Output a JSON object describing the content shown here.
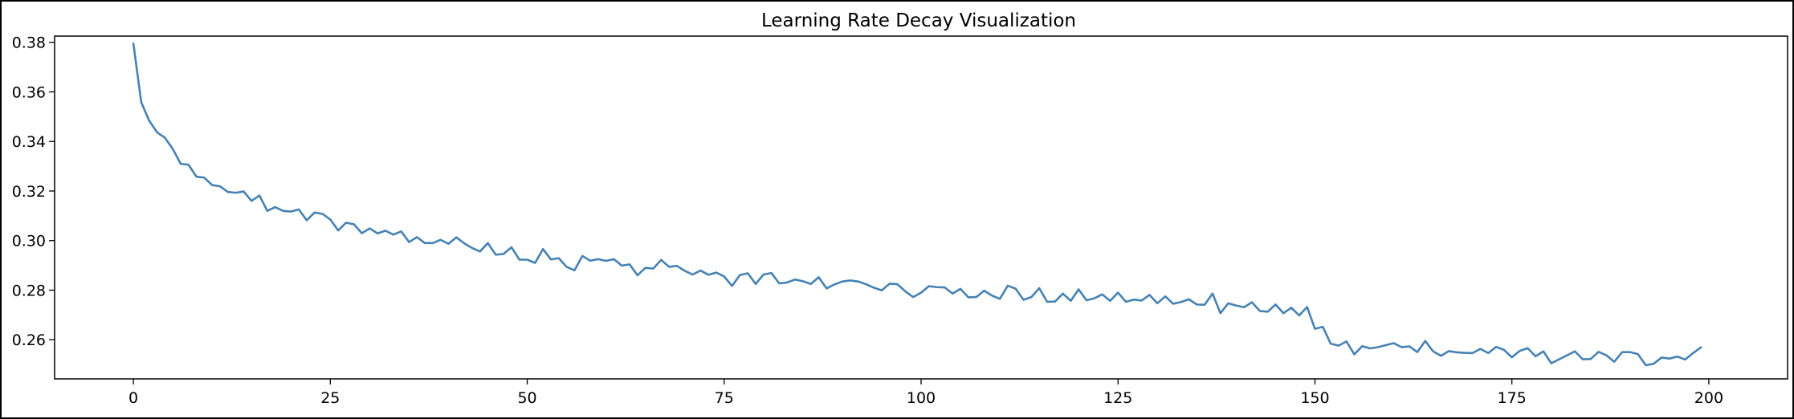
{
  "chart_data": {
    "type": "line",
    "title": "Learning Rate Decay Visualization",
    "xlabel": "",
    "ylabel": "",
    "xlim": [
      -10,
      210
    ],
    "ylim": [
      0.2442,
      0.3825
    ],
    "x_ticks": [
      0,
      25,
      50,
      75,
      100,
      125,
      150,
      175,
      200
    ],
    "y_ticks": [
      0.26,
      0.28,
      0.3,
      0.32,
      0.34,
      0.36,
      0.38
    ],
    "grid": false,
    "legend": "none",
    "line_color": "#4682b4",
    "series": [
      {
        "x": [
          0,
          1,
          2,
          3,
          4,
          5,
          6,
          7,
          8,
          9,
          10,
          11,
          12,
          13,
          14,
          15,
          16,
          17,
          18,
          19,
          20,
          21,
          22,
          23,
          24,
          25,
          26,
          27,
          28,
          29,
          30,
          31,
          32,
          33,
          34,
          35,
          36,
          37,
          38,
          39,
          40,
          41,
          42,
          43,
          44,
          45,
          46,
          47,
          48,
          49,
          50,
          51,
          52,
          53,
          54,
          55,
          56,
          57,
          58,
          59,
          60,
          61,
          62,
          63,
          64,
          65,
          66,
          67,
          68,
          69,
          70,
          71,
          72,
          73,
          74,
          75,
          76,
          77,
          78,
          79,
          80,
          81,
          82,
          83,
          84,
          85,
          86,
          87,
          88,
          89,
          90,
          91,
          92,
          93,
          94,
          95,
          96,
          97,
          98,
          99,
          100,
          101,
          102,
          103,
          104,
          105,
          106,
          107,
          108,
          109,
          110,
          111,
          112,
          113,
          114,
          115,
          116,
          117,
          118,
          119,
          120,
          121,
          122,
          123,
          124,
          125,
          126,
          127,
          128,
          129,
          130,
          131,
          132,
          133,
          134,
          135,
          136,
          137,
          138,
          139,
          140,
          141,
          142,
          143,
          144,
          145,
          146,
          147,
          148,
          149,
          150,
          151,
          152,
          153,
          154,
          155,
          156,
          157,
          158,
          159,
          160,
          161,
          162,
          163,
          164,
          165,
          166,
          167,
          168,
          169,
          170,
          171,
          172,
          173,
          174,
          175,
          176,
          177,
          178,
          179,
          180,
          181,
          182,
          183,
          184,
          185,
          186,
          187,
          188,
          189,
          190,
          191,
          192,
          193,
          194,
          195,
          196,
          197,
          198,
          199
        ],
        "values": [
          0.3795,
          0.3558,
          0.3484,
          0.3437,
          0.3415,
          0.337,
          0.331,
          0.3306,
          0.3258,
          0.3254,
          0.3224,
          0.3219,
          0.3196,
          0.3193,
          0.3198,
          0.316,
          0.3182,
          0.312,
          0.3135,
          0.312,
          0.3117,
          0.3126,
          0.3082,
          0.3113,
          0.3108,
          0.3085,
          0.3041,
          0.3072,
          0.3066,
          0.303,
          0.3049,
          0.3029,
          0.304,
          0.3024,
          0.3037,
          0.2994,
          0.3014,
          0.299,
          0.299,
          0.3003,
          0.2987,
          0.3013,
          0.2989,
          0.297,
          0.2956,
          0.299,
          0.2943,
          0.2946,
          0.2973,
          0.2923,
          0.2923,
          0.291,
          0.2966,
          0.2924,
          0.2929,
          0.2894,
          0.288,
          0.2938,
          0.2919,
          0.2925,
          0.2918,
          0.2925,
          0.2899,
          0.2904,
          0.286,
          0.289,
          0.2887,
          0.2922,
          0.2894,
          0.2898,
          0.2878,
          0.2863,
          0.2879,
          0.2862,
          0.2871,
          0.2855,
          0.2817,
          0.2861,
          0.2868,
          0.2825,
          0.2863,
          0.2869,
          0.2827,
          0.2831,
          0.2843,
          0.2836,
          0.2825,
          0.2852,
          0.2807,
          0.2823,
          0.2835,
          0.2839,
          0.2835,
          0.2824,
          0.281,
          0.2799,
          0.2826,
          0.2824,
          0.2795,
          0.2772,
          0.279,
          0.2816,
          0.2812,
          0.2811,
          0.2786,
          0.2805,
          0.2771,
          0.2772,
          0.2798,
          0.2778,
          0.2765,
          0.2818,
          0.2806,
          0.2761,
          0.2772,
          0.2808,
          0.2753,
          0.2754,
          0.2786,
          0.2757,
          0.2803,
          0.2759,
          0.2767,
          0.2783,
          0.2757,
          0.279,
          0.2753,
          0.2762,
          0.2758,
          0.2781,
          0.2747,
          0.2775,
          0.2745,
          0.2752,
          0.2763,
          0.2742,
          0.2741,
          0.2786,
          0.2707,
          0.2747,
          0.2738,
          0.2731,
          0.2751,
          0.2716,
          0.2713,
          0.2742,
          0.2707,
          0.2729,
          0.2698,
          0.2732,
          0.2644,
          0.2652,
          0.2584,
          0.2576,
          0.2593,
          0.2541,
          0.2574,
          0.2565,
          0.257,
          0.2578,
          0.2586,
          0.257,
          0.2573,
          0.255,
          0.2595,
          0.2553,
          0.2535,
          0.2554,
          0.2549,
          0.2547,
          0.2546,
          0.2563,
          0.2546,
          0.2571,
          0.2559,
          0.2529,
          0.2555,
          0.2566,
          0.2533,
          0.2553,
          0.2505,
          0.2521,
          0.2537,
          0.2553,
          0.2521,
          0.2522,
          0.2551,
          0.2537,
          0.2511,
          0.255,
          0.255,
          0.2542,
          0.2497,
          0.2503,
          0.2528,
          0.2524,
          0.2532,
          0.252,
          0.2546,
          0.2569
        ]
      }
    ]
  }
}
